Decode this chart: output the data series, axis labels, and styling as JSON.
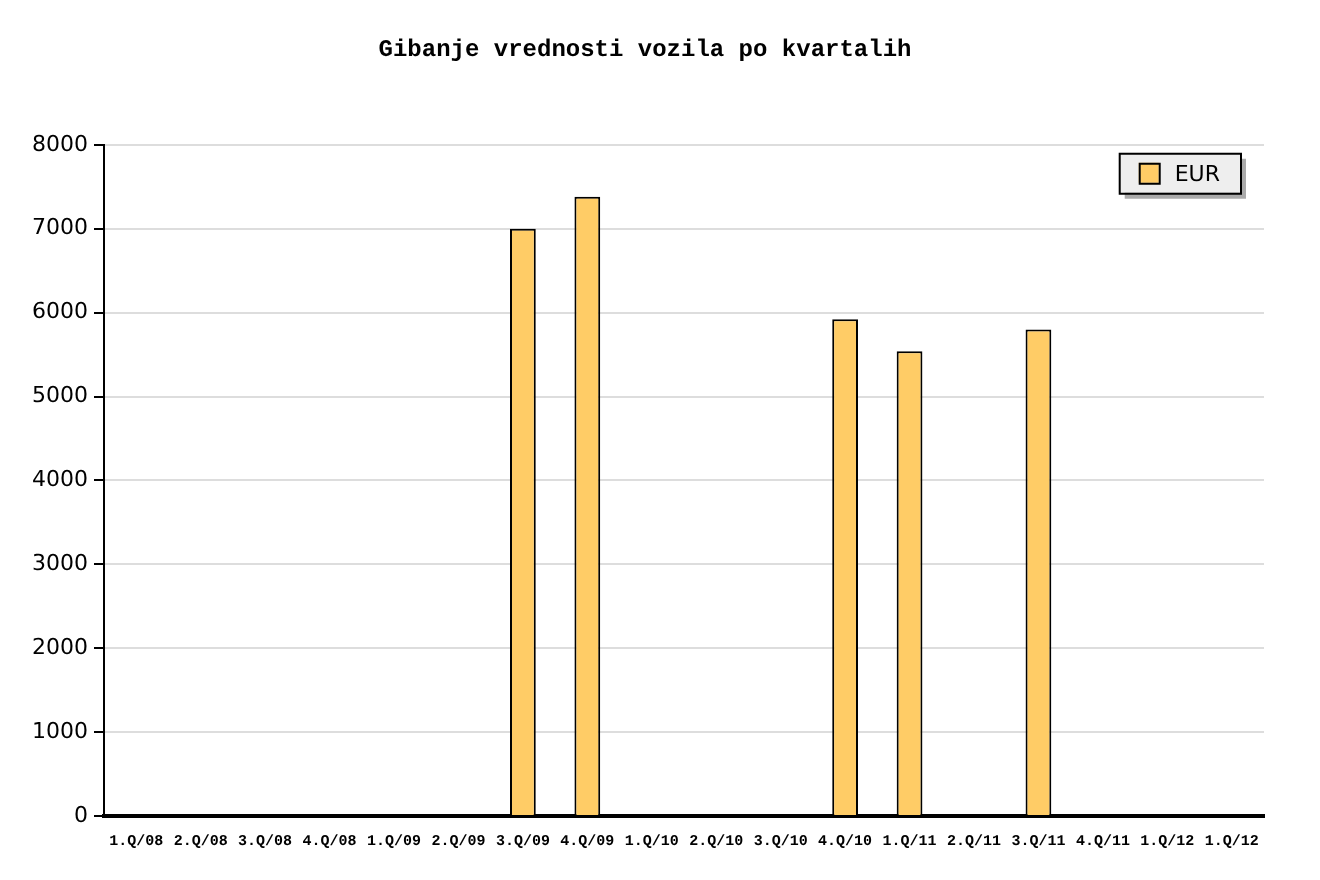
{
  "chart_data": {
    "type": "bar",
    "title": "Gibanje vrednosti vozila po kvartalih",
    "categories": [
      "1.Q/08",
      "2.Q/08",
      "3.Q/08",
      "4.Q/08",
      "1.Q/09",
      "2.Q/09",
      "3.Q/09",
      "4.Q/09",
      "1.Q/10",
      "2.Q/10",
      "3.Q/10",
      "4.Q/10",
      "1.Q/11",
      "2.Q/11",
      "3.Q/11",
      "4.Q/11",
      "1.Q/12",
      "1.Q/12"
    ],
    "series": [
      {
        "name": "EUR",
        "color": "#ffcc66",
        "values": [
          null,
          null,
          null,
          null,
          null,
          null,
          7000,
          7380,
          null,
          null,
          null,
          5920,
          5540,
          null,
          5800,
          null,
          null,
          null
        ]
      }
    ],
    "ylim": [
      0,
      8000
    ],
    "yticks": [
      0,
      1000,
      2000,
      3000,
      4000,
      5000,
      6000,
      7000,
      8000
    ],
    "grid": "y",
    "legend": "top right"
  }
}
